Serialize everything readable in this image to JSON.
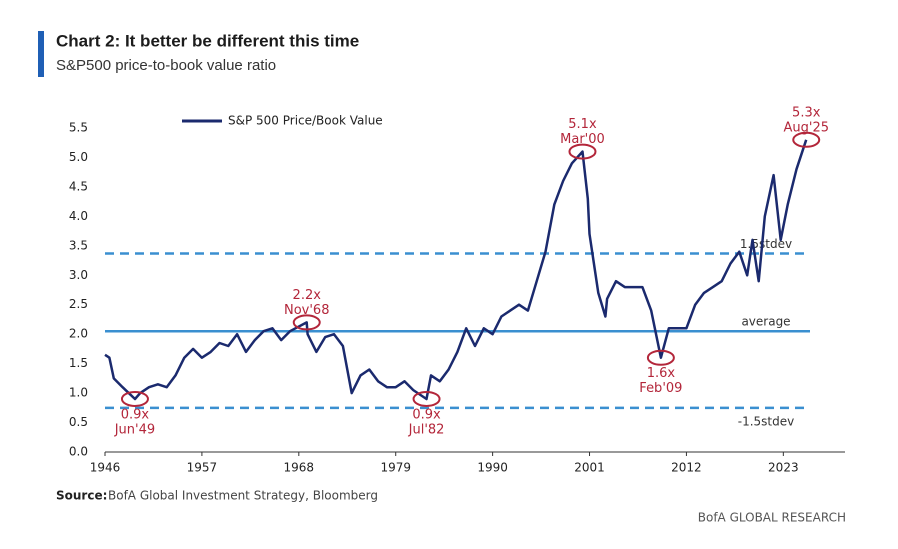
{
  "chart_data": {
    "type": "line",
    "title": "Chart 2: It better be different this time",
    "subtitle": "S&P500 price-to-book value ratio",
    "source_label": "Source:",
    "source": "BofA Global Investment Strategy, Bloomberg",
    "footer": "BofA GLOBAL RESEARCH",
    "x": [
      1946,
      1946.5,
      1947,
      1948,
      1949.4,
      1950,
      1951,
      1952,
      1953,
      1954,
      1955,
      1956,
      1957,
      1958,
      1959,
      1960,
      1961,
      1962,
      1963,
      1964,
      1965,
      1966,
      1967,
      1968.9,
      1969,
      1970,
      1971,
      1972,
      1973,
      1974,
      1975,
      1976,
      1977,
      1978,
      1979,
      1980,
      1981,
      1982.5,
      1983,
      1984,
      1985,
      1986,
      1987,
      1988,
      1989,
      1990,
      1991,
      1992,
      1993,
      1994,
      1995,
      1996,
      1997,
      1998,
      1999,
      2000.2,
      2000.8,
      2001,
      2002,
      2002.8,
      2003,
      2004,
      2005,
      2006,
      2007,
      2008,
      2009.1,
      2010,
      2011,
      2012,
      2013,
      2014,
      2015,
      2016,
      2017,
      2018,
      2018.9,
      2019.5,
      2020.2,
      2020.9,
      2021.9,
      2022.7,
      2023.5,
      2024.5,
      2025.6
    ],
    "series": [
      {
        "name": "S&P 500 Price/Book Value",
        "color": "#1b2a6e",
        "values": [
          1.65,
          1.6,
          1.25,
          1.1,
          0.9,
          1.0,
          1.1,
          1.15,
          1.1,
          1.3,
          1.6,
          1.75,
          1.6,
          1.7,
          1.85,
          1.8,
          2.0,
          1.7,
          1.9,
          2.05,
          2.1,
          1.9,
          2.05,
          2.2,
          2.0,
          1.7,
          1.95,
          2.0,
          1.8,
          1.0,
          1.3,
          1.4,
          1.2,
          1.1,
          1.1,
          1.2,
          1.05,
          0.9,
          1.3,
          1.2,
          1.4,
          1.7,
          2.1,
          1.8,
          2.1,
          2.0,
          2.3,
          2.4,
          2.5,
          2.4,
          2.9,
          3.4,
          4.2,
          4.6,
          4.9,
          5.1,
          4.3,
          3.7,
          2.7,
          2.3,
          2.6,
          2.9,
          2.8,
          2.8,
          2.8,
          2.4,
          1.6,
          2.1,
          2.1,
          2.1,
          2.5,
          2.7,
          2.8,
          2.9,
          3.2,
          3.4,
          3.0,
          3.6,
          2.9,
          4.0,
          4.7,
          3.6,
          4.2,
          4.8,
          5.3
        ]
      }
    ],
    "xlim": [
      1946,
      2030
    ],
    "xticks": [
      1946,
      1957,
      1968,
      1979,
      1990,
      2001,
      2012,
      2023
    ],
    "ylim": [
      0,
      5.5
    ],
    "yticks": [
      {
        "value": 0,
        "label": "0.0"
      },
      {
        "value": 0.5,
        "label": "0.5"
      },
      {
        "value": 1,
        "label": "1.0"
      },
      {
        "value": 1.5,
        "label": "1.5"
      },
      {
        "value": 2,
        "label": "2.0"
      },
      {
        "value": 2.5,
        "label": "2.5"
      },
      {
        "value": 3,
        "label": "3.0"
      },
      {
        "value": 3.5,
        "label": "3.5"
      },
      {
        "value": 4,
        "label": "4.0"
      },
      {
        "value": 4.5,
        "label": "4.5"
      },
      {
        "value": 5,
        "label": "5.0"
      },
      {
        "value": 5.5,
        "label": "5.5"
      }
    ],
    "reference_lines": [
      {
        "label": "1.5stdev",
        "value": 3.37,
        "style": "dashed",
        "color": "#3a8fd0"
      },
      {
        "label": "average",
        "value": 2.05,
        "style": "solid",
        "color": "#3a8fd0"
      },
      {
        "label": "-1.5stdev",
        "value": 0.75,
        "style": "dashed",
        "color": "#3a8fd0"
      }
    ],
    "annotations": [
      {
        "text": [
          "0.9x",
          "Jun'49"
        ],
        "x": 1949.4,
        "y": 0.9
      },
      {
        "text": [
          "2.2x",
          "Nov'68"
        ],
        "x": 1968.9,
        "y": 2.2
      },
      {
        "text": [
          "0.9x",
          "Jul'82"
        ],
        "x": 1982.5,
        "y": 0.9
      },
      {
        "text": [
          "5.1x",
          "Mar'00"
        ],
        "x": 2000.2,
        "y": 5.1
      },
      {
        "text": [
          "1.6x",
          "Feb'09"
        ],
        "x": 2009.1,
        "y": 1.6
      },
      {
        "text": [
          "5.3x",
          "Aug'25"
        ],
        "x": 2025.6,
        "y": 5.3
      }
    ],
    "annotation_color": "#b3263a",
    "legend": "top-left",
    "grid": false
  }
}
